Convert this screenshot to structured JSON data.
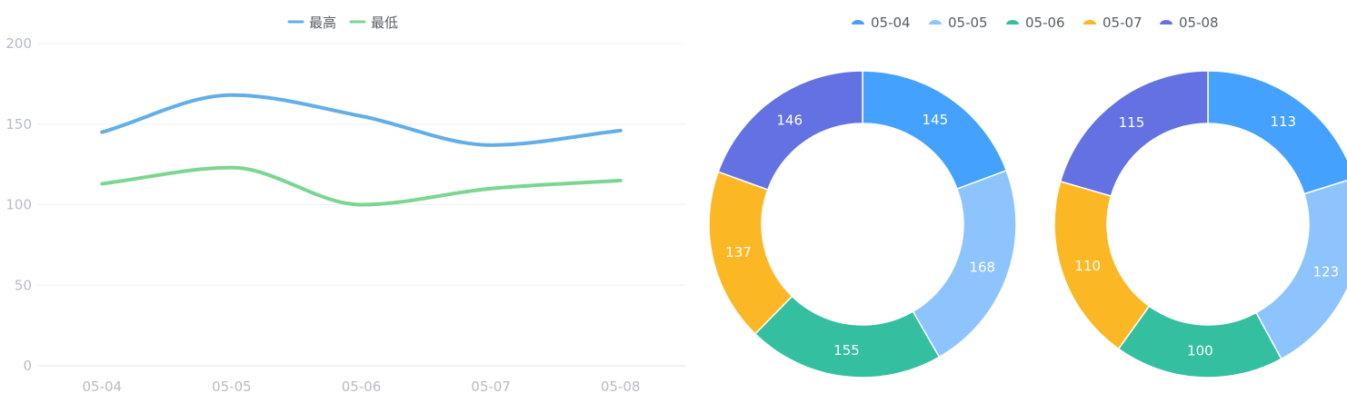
{
  "chart_data": [
    {
      "type": "line",
      "smooth": true,
      "categories": [
        "05-04",
        "05-05",
        "05-06",
        "05-07",
        "05-08"
      ],
      "series": [
        {
          "name": "最高",
          "color": "#62aee8",
          "values": [
            145,
            168,
            155,
            137,
            146
          ]
        },
        {
          "name": "最低",
          "color": "#7ad691",
          "values": [
            113,
            123,
            100,
            110,
            115
          ]
        }
      ],
      "ylim": [
        0,
        200
      ],
      "yticks": [
        "0",
        "50",
        "100",
        "150",
        "200"
      ],
      "grid": true,
      "legend": "top-center"
    },
    {
      "type": "pie",
      "donut": true,
      "categories": [
        "05-04",
        "05-05",
        "05-06",
        "05-07",
        "05-08"
      ],
      "colors": [
        "#44a1fd",
        "#8ec4fd",
        "#35bfa1",
        "#fcb724",
        "#6371e2"
      ],
      "values": [
        145,
        168,
        155,
        137,
        146
      ],
      "legend": "top-center"
    },
    {
      "type": "pie",
      "donut": true,
      "categories": [
        "05-04",
        "05-05",
        "05-06",
        "05-07",
        "05-08"
      ],
      "colors": [
        "#44a1fd",
        "#8ec4fd",
        "#35bfa1",
        "#fcb724",
        "#6371e2"
      ],
      "values": [
        113,
        123,
        100,
        110,
        115
      ]
    }
  ]
}
